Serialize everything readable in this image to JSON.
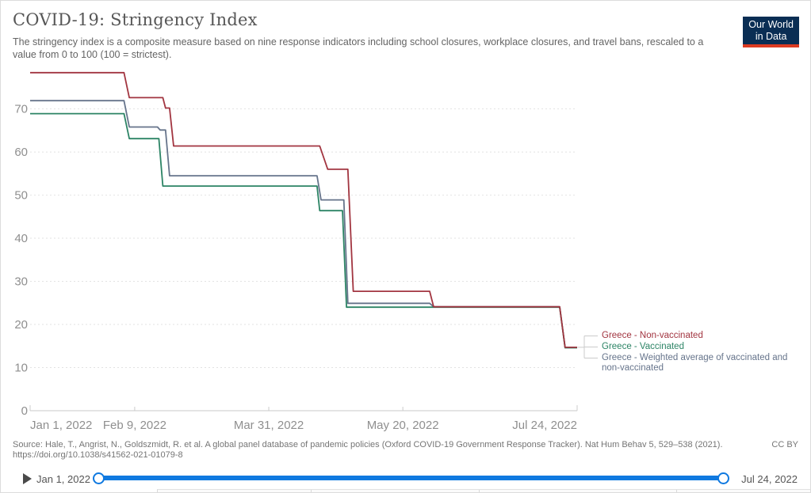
{
  "header": {
    "title": "COVID-19: Stringency Index",
    "subtitle_lines": [
      "The stringency index is a composite measure based on nine response indicators including school closures, workplace closures, and travel bans, rescaled to a",
      "value from 0 to 100 (100 = strictest)."
    ],
    "logo": {
      "line1": "Our World",
      "line2": "in Data",
      "bg": "#0a2e54",
      "stripe": "#dc3b22"
    }
  },
  "chart_data": {
    "type": "line",
    "step": true,
    "title": "COVID-19: Stringency Index",
    "x_axis": {
      "unit": "date",
      "x_unit_encoding": "days since Jan 1, 2022",
      "total_days": 204,
      "ticks": [
        {
          "label": "Jan 1, 2022",
          "day": 0
        },
        {
          "label": "Feb 9, 2022",
          "day": 39
        },
        {
          "label": "Mar 31, 2022",
          "day": 89
        },
        {
          "label": "May 20, 2022",
          "day": 139
        },
        {
          "label": "Jul 24, 2022",
          "day": 204
        }
      ]
    },
    "y_axis": {
      "ticks": [
        0,
        10,
        20,
        30,
        40,
        50,
        60,
        70
      ],
      "range": [
        0,
        80
      ],
      "grid": "dashed"
    },
    "legend_position": "right-of-line-ends",
    "series": [
      {
        "name": "Greece - Non-vaccinated",
        "color": "#a23540",
        "label_lines": [
          "Greece - Non-vaccinated"
        ],
        "points": [
          [
            0,
            78.4
          ],
          [
            35,
            78.4
          ],
          [
            37,
            72.6
          ],
          [
            49.5,
            72.6
          ],
          [
            50.5,
            70.2
          ],
          [
            52,
            70.2
          ],
          [
            53.5,
            61.4
          ],
          [
            108,
            61.4
          ],
          [
            111,
            56.0
          ],
          [
            118.5,
            56.0
          ],
          [
            120.5,
            27.7
          ],
          [
            149,
            27.7
          ],
          [
            150.5,
            24.1
          ],
          [
            197.5,
            24.1
          ],
          [
            199.5,
            14.7
          ],
          [
            204,
            14.7
          ]
        ]
      },
      {
        "name": "Greece - Vaccinated",
        "color": "#2c8465",
        "label_lines": [
          "Greece - Vaccinated"
        ],
        "points": [
          [
            0,
            68.9
          ],
          [
            35,
            68.9
          ],
          [
            37,
            63.1
          ],
          [
            48,
            63.1
          ],
          [
            49.5,
            52.1
          ],
          [
            107,
            52.1
          ],
          [
            108,
            46.4
          ],
          [
            116.5,
            46.4
          ],
          [
            118,
            24.0
          ],
          [
            197.5,
            24.0
          ],
          [
            199.5,
            14.6
          ],
          [
            204,
            14.6
          ]
        ]
      },
      {
        "name": "Greece - Weighted average of vaccinated and non-vaccinated",
        "color": "#66748b",
        "label_lines": [
          "Greece - Weighted average of vaccinated and",
          "non-vaccinated"
        ],
        "points": [
          [
            0,
            71.9
          ],
          [
            35,
            71.9
          ],
          [
            37,
            65.8
          ],
          [
            47.5,
            65.8
          ],
          [
            48.5,
            65.1
          ],
          [
            50.5,
            65.1
          ],
          [
            52,
            54.5
          ],
          [
            107,
            54.5
          ],
          [
            108.5,
            48.9
          ],
          [
            117,
            48.9
          ],
          [
            118.5,
            24.9
          ],
          [
            149,
            24.9
          ],
          [
            150.5,
            24.1
          ],
          [
            197.5,
            24.1
          ],
          [
            199.5,
            14.7
          ],
          [
            204,
            14.7
          ]
        ]
      }
    ]
  },
  "footer": {
    "source_lines": [
      "Source: Hale, T., Angrist, N., Goldszmidt, R. et al. A global panel database of pandemic policies (Oxford COVID-19 Government Response Tracker). Nat Hum Behav 5, 529–538 (2021).",
      "https://doi.org/10.1038/s41562-021-01079-8"
    ],
    "license": "CC BY"
  },
  "timeline": {
    "start_label": "Jan 1, 2022",
    "end_label": "Jul 24, 2022",
    "accent": "#0f79e0"
  }
}
